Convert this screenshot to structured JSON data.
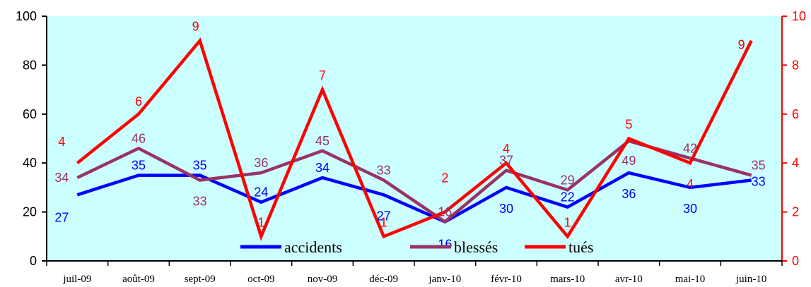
{
  "chart_data": {
    "type": "line",
    "categories": [
      "juil-09",
      "août-09",
      "sept-09",
      "oct-09",
      "nov-09",
      "déc-09",
      "janv-10",
      "févr-10",
      "mars-10",
      "avr-10",
      "mai-10",
      "juin-10"
    ],
    "y_left": {
      "range": [
        0,
        100
      ],
      "ticks": [
        "0",
        "20",
        "40",
        "60",
        "80",
        "100"
      ]
    },
    "y_right": {
      "range": [
        0,
        10
      ],
      "ticks": [
        "0",
        "2",
        "4",
        "6",
        "8",
        "10"
      ],
      "color": "#ff0000"
    },
    "series": [
      {
        "name": "accidents",
        "axis": "left",
        "color": "#0000ff",
        "values": [
          27,
          35,
          35,
          24,
          34,
          27,
          16,
          30,
          22,
          36,
          30,
          33
        ]
      },
      {
        "name": "blessés",
        "axis": "left",
        "color": "#993366",
        "values": [
          34,
          46,
          33,
          36,
          45,
          33,
          16,
          37,
          29,
          49,
          42,
          35
        ]
      },
      {
        "name": "tués",
        "axis": "right",
        "color": "#ff0000",
        "values": [
          4,
          6,
          9,
          1,
          7,
          1,
          2,
          4,
          1,
          5,
          4,
          9
        ]
      }
    ],
    "plot_background": "#ccffff",
    "grid": false,
    "legend_position": "bottom-inside"
  }
}
